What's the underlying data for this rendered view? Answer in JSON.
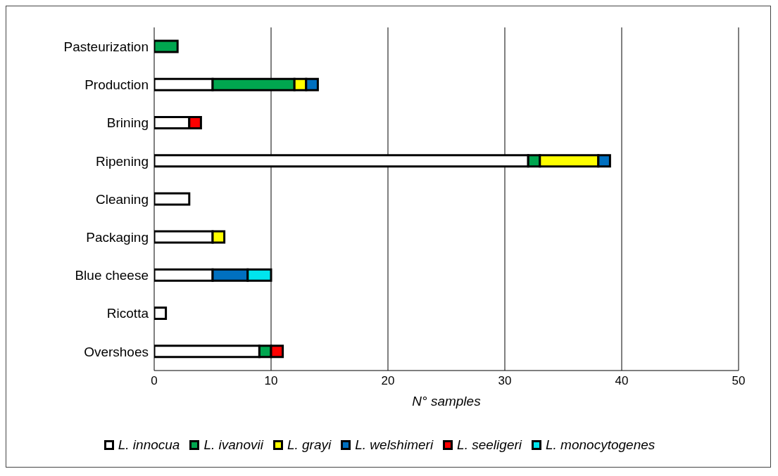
{
  "chart_data": {
    "type": "bar",
    "orientation": "horizontal",
    "stacked": true,
    "xlabel": "N° samples",
    "categories": [
      "Pasteurization",
      "Production",
      "Brining",
      "Ripening",
      "Cleaning",
      "Packaging",
      "Blue cheese",
      "Ricotta",
      "Overshoes"
    ],
    "series": [
      {
        "name": "L. innocua",
        "color": "#ffffff",
        "values": [
          null,
          5,
          3,
          32,
          3,
          5,
          5,
          1,
          9
        ]
      },
      {
        "name": "L. ivanovii",
        "color": "#00a64f",
        "values": [
          2,
          7,
          null,
          1,
          null,
          null,
          null,
          null,
          1
        ]
      },
      {
        "name": "L. grayi",
        "color": "#ffff00",
        "values": [
          null,
          1,
          null,
          5,
          null,
          1,
          null,
          null,
          null
        ]
      },
      {
        "name": "L. welshimeri",
        "color": "#0070c0",
        "values": [
          null,
          1,
          null,
          1,
          null,
          null,
          3,
          null,
          null
        ]
      },
      {
        "name": "L. seeligeri",
        "color": "#ff0000",
        "values": [
          null,
          null,
          1,
          null,
          null,
          null,
          null,
          null,
          1
        ]
      },
      {
        "name": "L. monocytogenes",
        "color": "#00e5ee",
        "values": [
          null,
          null,
          null,
          null,
          null,
          null,
          2,
          null,
          null
        ]
      }
    ],
    "xlim": [
      0,
      50
    ],
    "xticks": [
      0,
      10,
      20,
      30,
      40,
      50
    ],
    "grid": "x",
    "legend": "bottom"
  }
}
